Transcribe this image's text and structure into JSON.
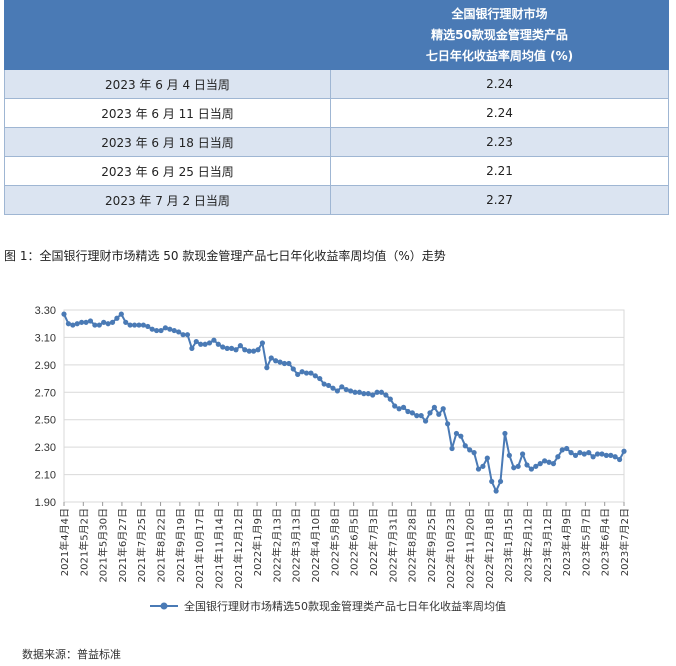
{
  "table": {
    "header": [
      "全国银行理财市场",
      "精选50款现金管理类产品",
      "七日年化收益率周均值 (%)"
    ],
    "rows": [
      {
        "week": "2023 年 6 月 4 日当周",
        "value": "2.24"
      },
      {
        "week": "2023 年 6 月 11 日当周",
        "value": "2.24"
      },
      {
        "week": "2023 年 6 月 18 日当周",
        "value": "2.23"
      },
      {
        "week": "2023 年 6 月 25 日当周",
        "value": "2.21"
      },
      {
        "week": "2023 年 7 月 2 日当周",
        "value": "2.27"
      }
    ]
  },
  "caption": "图 1：全国银行理财市场精选 50 款现金管理产品七日年化收益率周均值（%）走势",
  "source": "数据来源：普益标准",
  "colors": {
    "line": "#4a7ab5",
    "grid": "#d9d9d9",
    "header_bg": "#4a7ab5",
    "row_alt": "#dbe4f1"
  },
  "chart_data": {
    "type": "line",
    "title": "",
    "xlabel": "",
    "ylabel": "",
    "ylim": [
      1.9,
      3.3
    ],
    "yticks": [
      "1.90",
      "2.10",
      "2.30",
      "2.50",
      "2.70",
      "2.90",
      "3.10",
      "3.30"
    ],
    "x_tick_labels": [
      "2021年4月4日",
      "2021年5月2日",
      "2021年5月30日",
      "2021年6月27日",
      "2021年7月25日",
      "2021年8月22日",
      "2021年9月19日",
      "2021年10月17日",
      "2021年11月14日",
      "2021年12月12日",
      "2022年1月9日",
      "2022年2月13日",
      "2022年3月13日",
      "2022年4月10日",
      "2022年5月8日",
      "2022年6月5日",
      "2022年7月3日",
      "2022年7月31日",
      "2022年8月28日",
      "2022年9月25日",
      "2022年10月23日",
      "2022年11月20日",
      "2022年12月18日",
      "2023年1月15日",
      "2023年2月12日",
      "2023年3月12日",
      "2023年4月9日",
      "2023年5月7日",
      "2023年6月4日",
      "2023年7月2日"
    ],
    "legend": "top-bottom",
    "series": [
      {
        "name": "全国银行理财市场精选50款现金管理类产品七日年化收益率周均值",
        "values": [
          3.27,
          3.2,
          3.19,
          3.2,
          3.21,
          3.21,
          3.22,
          3.19,
          3.19,
          3.21,
          3.2,
          3.21,
          3.24,
          3.27,
          3.21,
          3.19,
          3.19,
          3.19,
          3.19,
          3.18,
          3.16,
          3.15,
          3.15,
          3.17,
          3.16,
          3.15,
          3.14,
          3.12,
          3.12,
          3.02,
          3.07,
          3.05,
          3.05,
          3.06,
          3.08,
          3.05,
          3.03,
          3.02,
          3.02,
          3.01,
          3.04,
          3.01,
          3.0,
          3.0,
          3.01,
          3.06,
          2.88,
          2.95,
          2.93,
          2.92,
          2.91,
          2.91,
          2.87,
          2.83,
          2.85,
          2.84,
          2.84,
          2.82,
          2.8,
          2.76,
          2.75,
          2.73,
          2.71,
          2.74,
          2.72,
          2.71,
          2.7,
          2.7,
          2.69,
          2.69,
          2.68,
          2.7,
          2.7,
          2.68,
          2.65,
          2.6,
          2.58,
          2.59,
          2.56,
          2.55,
          2.53,
          2.53,
          2.49,
          2.55,
          2.59,
          2.54,
          2.58,
          2.47,
          2.29,
          2.4,
          2.38,
          2.31,
          2.28,
          2.26,
          2.14,
          2.16,
          2.22,
          2.05,
          1.98,
          2.05,
          2.4,
          2.24,
          2.15,
          2.16,
          2.25,
          2.17,
          2.14,
          2.16,
          2.18,
          2.2,
          2.19,
          2.18,
          2.23,
          2.28,
          2.29,
          2.26,
          2.24,
          2.26,
          2.25,
          2.26,
          2.23,
          2.25,
          2.25,
          2.24,
          2.24,
          2.23,
          2.21,
          2.27
        ]
      }
    ]
  }
}
